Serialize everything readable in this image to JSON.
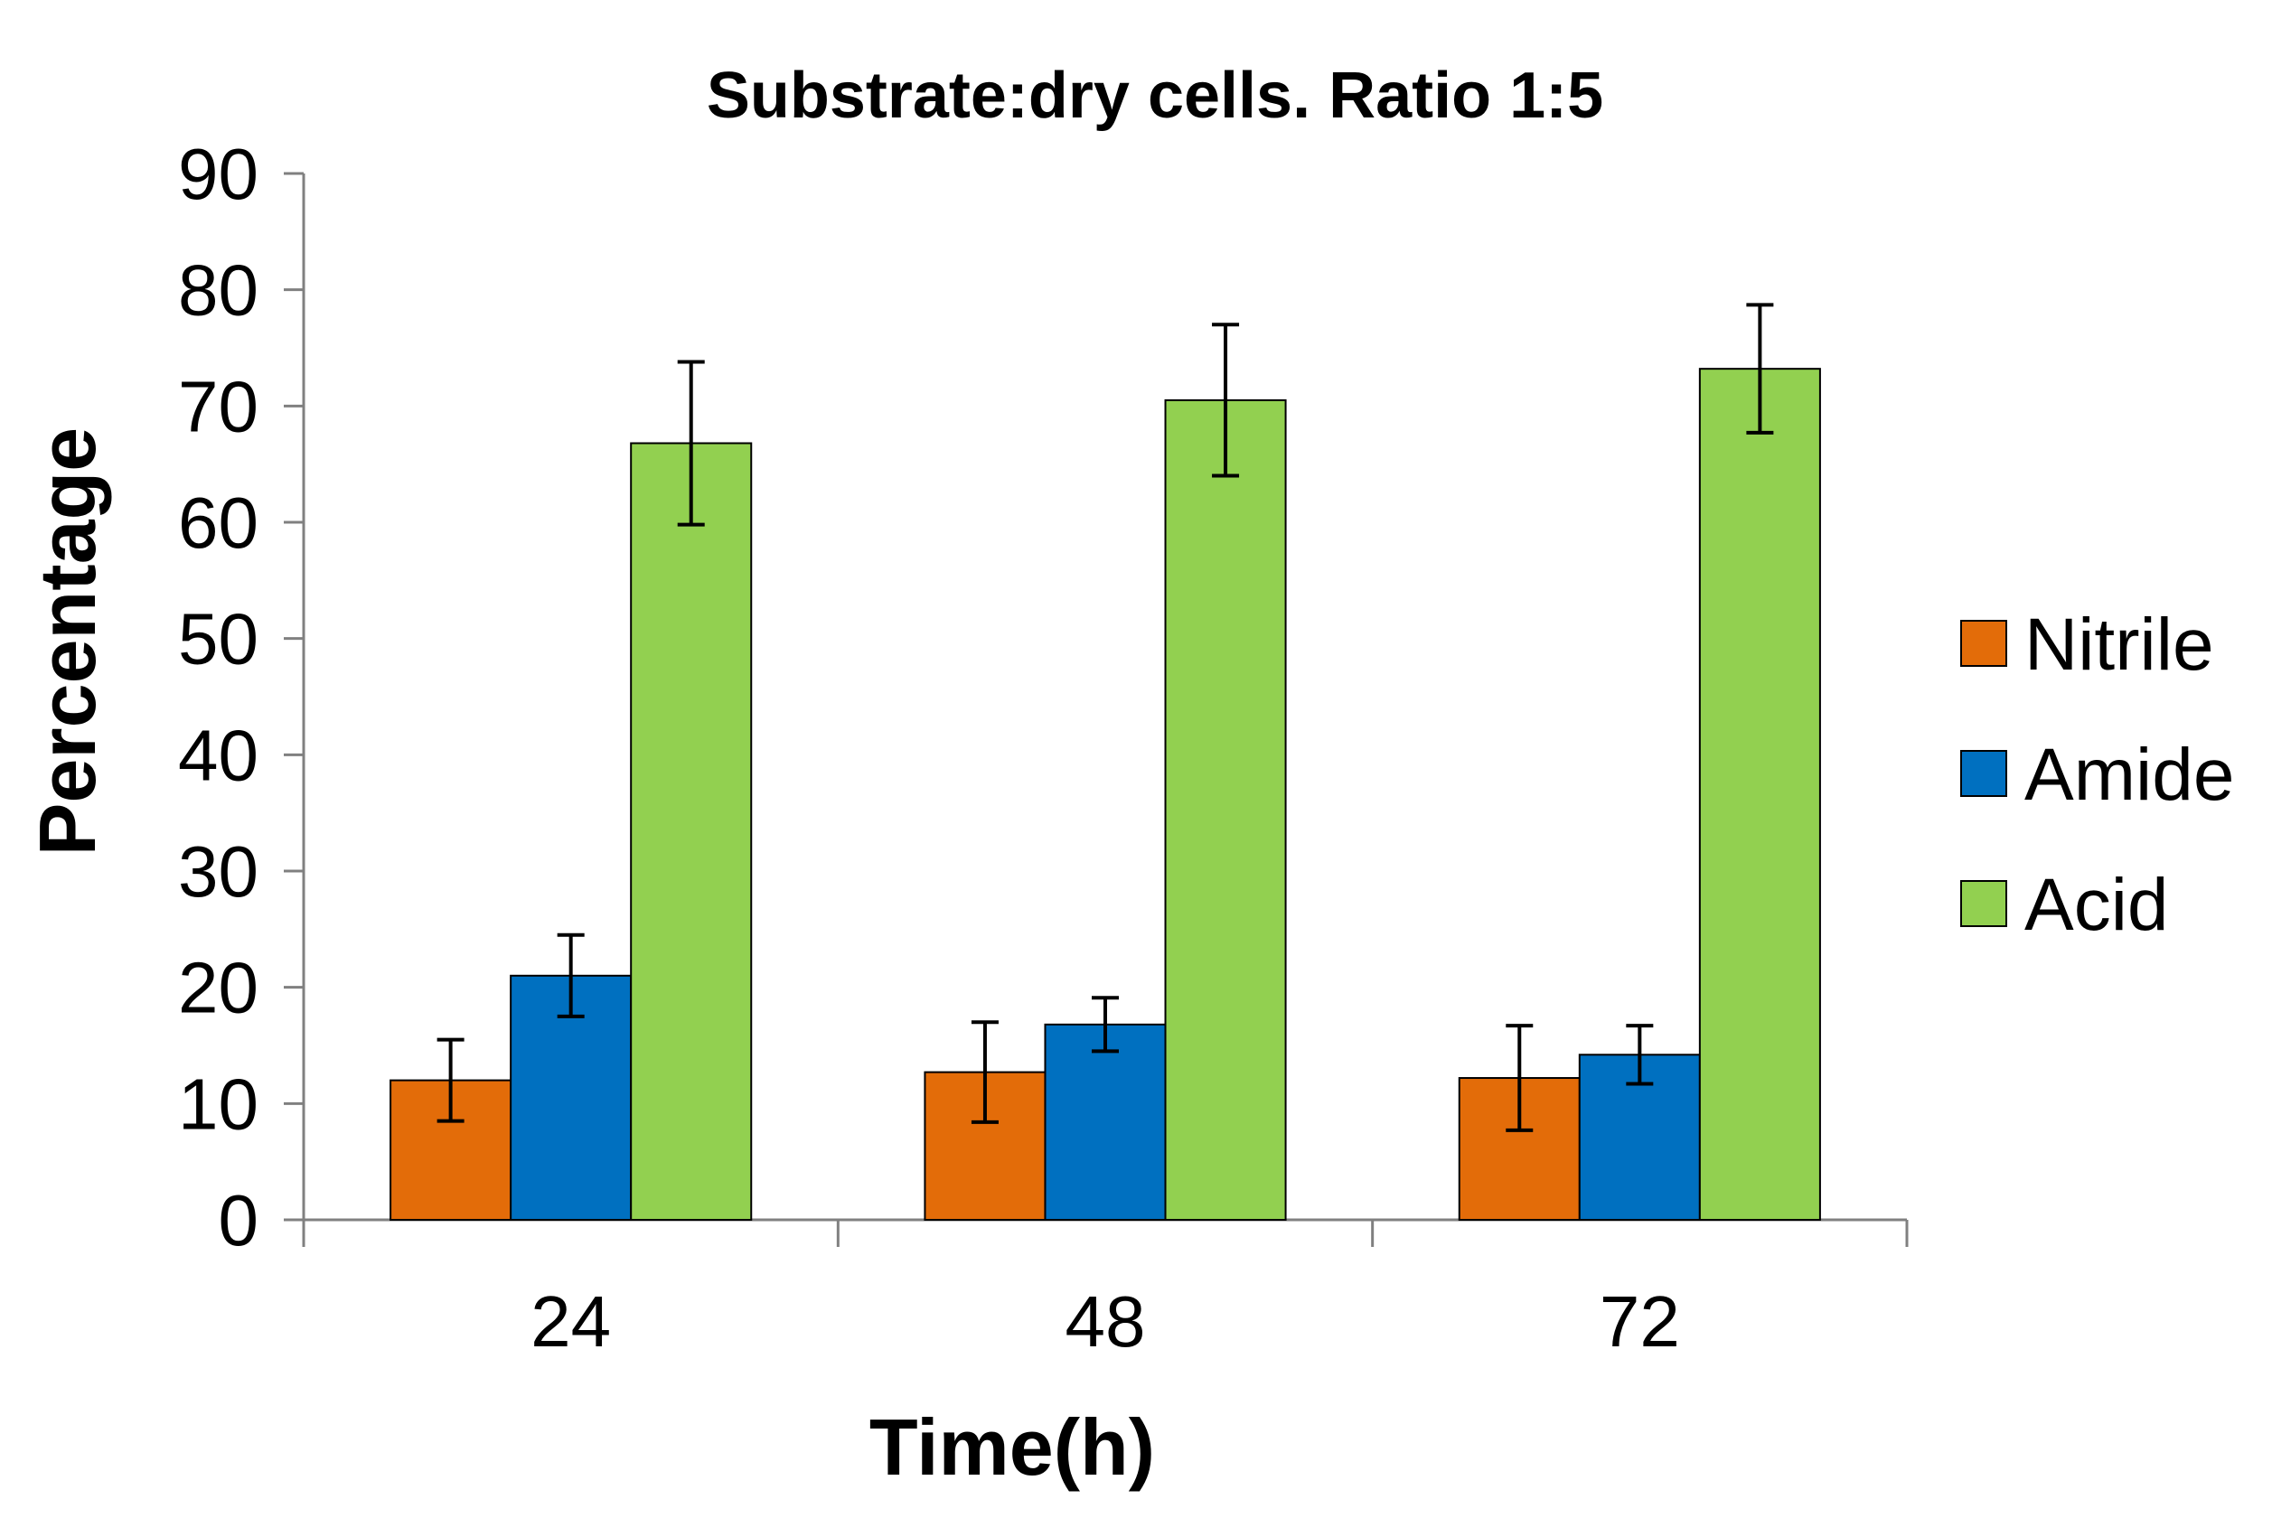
{
  "chart_data": {
    "type": "bar",
    "title": "Substrate:dry cells. Ratio 1:5",
    "xlabel": "Time(h)",
    "ylabel": "Percentage",
    "categories": [
      "24",
      "48",
      "72"
    ],
    "ylim": [
      0,
      90
    ],
    "yticks": [
      "0",
      "10",
      "20",
      "30",
      "40",
      "50",
      "60",
      "70",
      "80",
      "90"
    ],
    "legend_position": "right",
    "series": [
      {
        "name": "Nitrile",
        "color": "#E36C09",
        "values": [
          12,
          12.7,
          12.2
        ],
        "errors": [
          3.5,
          4.3,
          4.5
        ]
      },
      {
        "name": "Amide",
        "color": "#0070C0",
        "values": [
          21,
          16.8,
          14.2
        ],
        "errors": [
          3.5,
          2.3,
          2.5
        ]
      },
      {
        "name": "Acid",
        "color": "#92D050",
        "values": [
          66.8,
          70.5,
          73.2
        ],
        "errors": [
          7,
          6.5,
          5.5
        ]
      }
    ]
  }
}
